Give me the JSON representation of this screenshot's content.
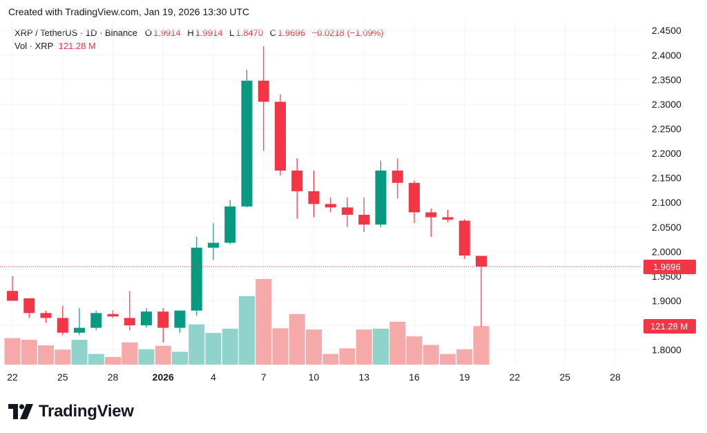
{
  "header": {
    "created_text": "Created with TradingView.com, Jan 19, 2026 13:30 UTC"
  },
  "legend": {
    "symbol": "XRP / TetherUS · 1D · Binance",
    "open_label": "O",
    "open": "1.9914",
    "high_label": "H",
    "high": "1.9914",
    "low_label": "L",
    "low": "1.8470",
    "close_label": "C",
    "close": "1.9696",
    "change": "−0.0218 (−1.09%)",
    "vol_label": "Vol · XRP",
    "vol_value": "121.28 M"
  },
  "price_badge": "1.9696",
  "volume_badge": "121.28 M",
  "brand": {
    "name": "TradingView",
    "logo_icon": "tradingview-logo-icon"
  },
  "colors": {
    "up": "#089981",
    "down": "#f23645",
    "vol_up": "#8fd3cb",
    "vol_down": "#f6a9a9",
    "grid": "#f0f3fa",
    "text": "#131722"
  },
  "chart_data": {
    "type": "candlestick",
    "x_ticks": [
      "22",
      "25",
      "28",
      "2026",
      "4",
      "7",
      "10",
      "13",
      "16",
      "19",
      "22",
      "25",
      "28"
    ],
    "y_ticks": [
      "1.8000",
      "1.8500",
      "1.9000",
      "1.9500",
      "2.0000",
      "2.0500",
      "2.1000",
      "2.1500",
      "2.2000",
      "2.2500",
      "2.3000",
      "2.3500",
      "2.4000",
      "2.4500"
    ],
    "ylim": [
      1.77,
      2.47
    ],
    "grid": true,
    "last_price": 1.9696,
    "candles": [
      {
        "o": 1.92,
        "h": 1.95,
        "l": 1.9,
        "c": 1.9
      },
      {
        "o": 1.905,
        "h": 1.905,
        "l": 1.865,
        "c": 1.875
      },
      {
        "o": 1.875,
        "h": 1.88,
        "l": 1.855,
        "c": 1.865
      },
      {
        "o": 1.865,
        "h": 1.89,
        "l": 1.83,
        "c": 1.835
      },
      {
        "o": 1.835,
        "h": 1.885,
        "l": 1.83,
        "c": 1.845
      },
      {
        "o": 1.845,
        "h": 1.88,
        "l": 1.84,
        "c": 1.875
      },
      {
        "o": 1.873,
        "h": 1.88,
        "l": 1.865,
        "c": 1.868
      },
      {
        "o": 1.865,
        "h": 1.92,
        "l": 1.84,
        "c": 1.85
      },
      {
        "o": 1.85,
        "h": 1.885,
        "l": 1.845,
        "c": 1.878
      },
      {
        "o": 1.878,
        "h": 1.885,
        "l": 1.815,
        "c": 1.845
      },
      {
        "o": 1.845,
        "h": 1.88,
        "l": 1.835,
        "c": 1.88
      },
      {
        "o": 1.88,
        "h": 2.03,
        "l": 1.87,
        "c": 2.008
      },
      {
        "o": 2.008,
        "h": 2.058,
        "l": 1.983,
        "c": 2.018
      },
      {
        "o": 2.018,
        "h": 2.105,
        "l": 2.015,
        "c": 2.092
      },
      {
        "o": 2.092,
        "h": 2.37,
        "l": 2.09,
        "c": 2.348
      },
      {
        "o": 2.348,
        "h": 2.418,
        "l": 2.205,
        "c": 2.305
      },
      {
        "o": 2.305,
        "h": 2.32,
        "l": 2.155,
        "c": 2.165
      },
      {
        "o": 2.165,
        "h": 2.19,
        "l": 2.067,
        "c": 2.123
      },
      {
        "o": 2.123,
        "h": 2.165,
        "l": 2.07,
        "c": 2.097
      },
      {
        "o": 2.097,
        "h": 2.11,
        "l": 2.08,
        "c": 2.09
      },
      {
        "o": 2.09,
        "h": 2.11,
        "l": 2.05,
        "c": 2.075
      },
      {
        "o": 2.075,
        "h": 2.11,
        "l": 2.04,
        "c": 2.055
      },
      {
        "o": 2.055,
        "h": 2.185,
        "l": 2.05,
        "c": 2.165
      },
      {
        "o": 2.165,
        "h": 2.19,
        "l": 2.108,
        "c": 2.14
      },
      {
        "o": 2.14,
        "h": 2.145,
        "l": 2.058,
        "c": 2.08
      },
      {
        "o": 2.08,
        "h": 2.088,
        "l": 2.03,
        "c": 2.07
      },
      {
        "o": 2.07,
        "h": 2.085,
        "l": 2.06,
        "c": 2.065
      },
      {
        "o": 2.063,
        "h": 2.066,
        "l": 1.985,
        "c": 1.992
      },
      {
        "o": 1.9914,
        "h": 1.9914,
        "l": 1.847,
        "c": 1.9696
      }
    ],
    "volumes": [
      62,
      58,
      45,
      35,
      58,
      25,
      18,
      52,
      36,
      44,
      30,
      94,
      74,
      84,
      160,
      200,
      85,
      118,
      82,
      25,
      38,
      82,
      84,
      100,
      66,
      46,
      25,
      36,
      90
    ]
  }
}
